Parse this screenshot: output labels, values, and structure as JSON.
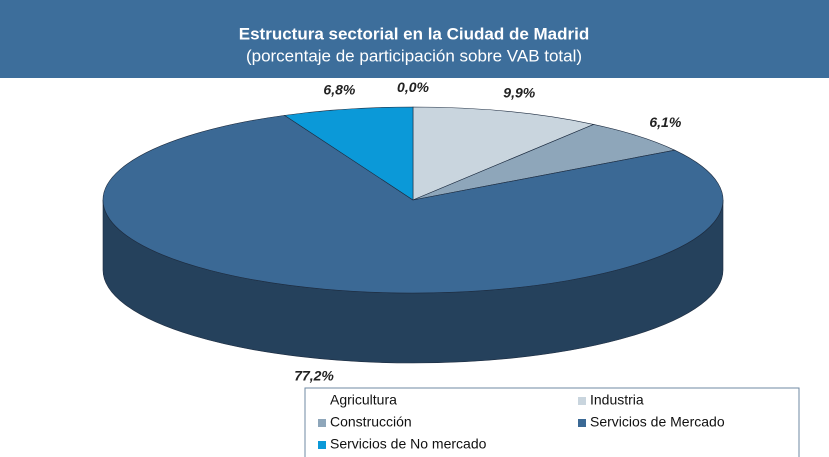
{
  "chart_data": {
    "type": "pie3d",
    "title": "Estructura sectorial en la Ciudad de Madrid",
    "subtitle": "(porcentaje de participación sobre VAB total)",
    "series": [
      {
        "name": "Agricultura",
        "color": "#ffffff",
        "values": [
          0.0
        ],
        "value_labels": [
          "0,0%"
        ]
      },
      {
        "name": "Industria",
        "color": "#c9d5de",
        "values": [
          9.9
        ],
        "value_labels": [
          "9,9%"
        ]
      },
      {
        "name": "Construcción",
        "color": "#8ea6ba",
        "values": [
          6.1
        ],
        "value_labels": [
          "6,1%"
        ]
      },
      {
        "name": "Servicios de Mercado",
        "color": "#3b6995",
        "values": [
          77.2
        ],
        "value_labels": [
          "77,2%"
        ]
      },
      {
        "name": "Servicios de No mercado",
        "color": "#0b99d8",
        "values": [
          6.8
        ],
        "value_labels": [
          "6,8%"
        ]
      }
    ]
  }
}
